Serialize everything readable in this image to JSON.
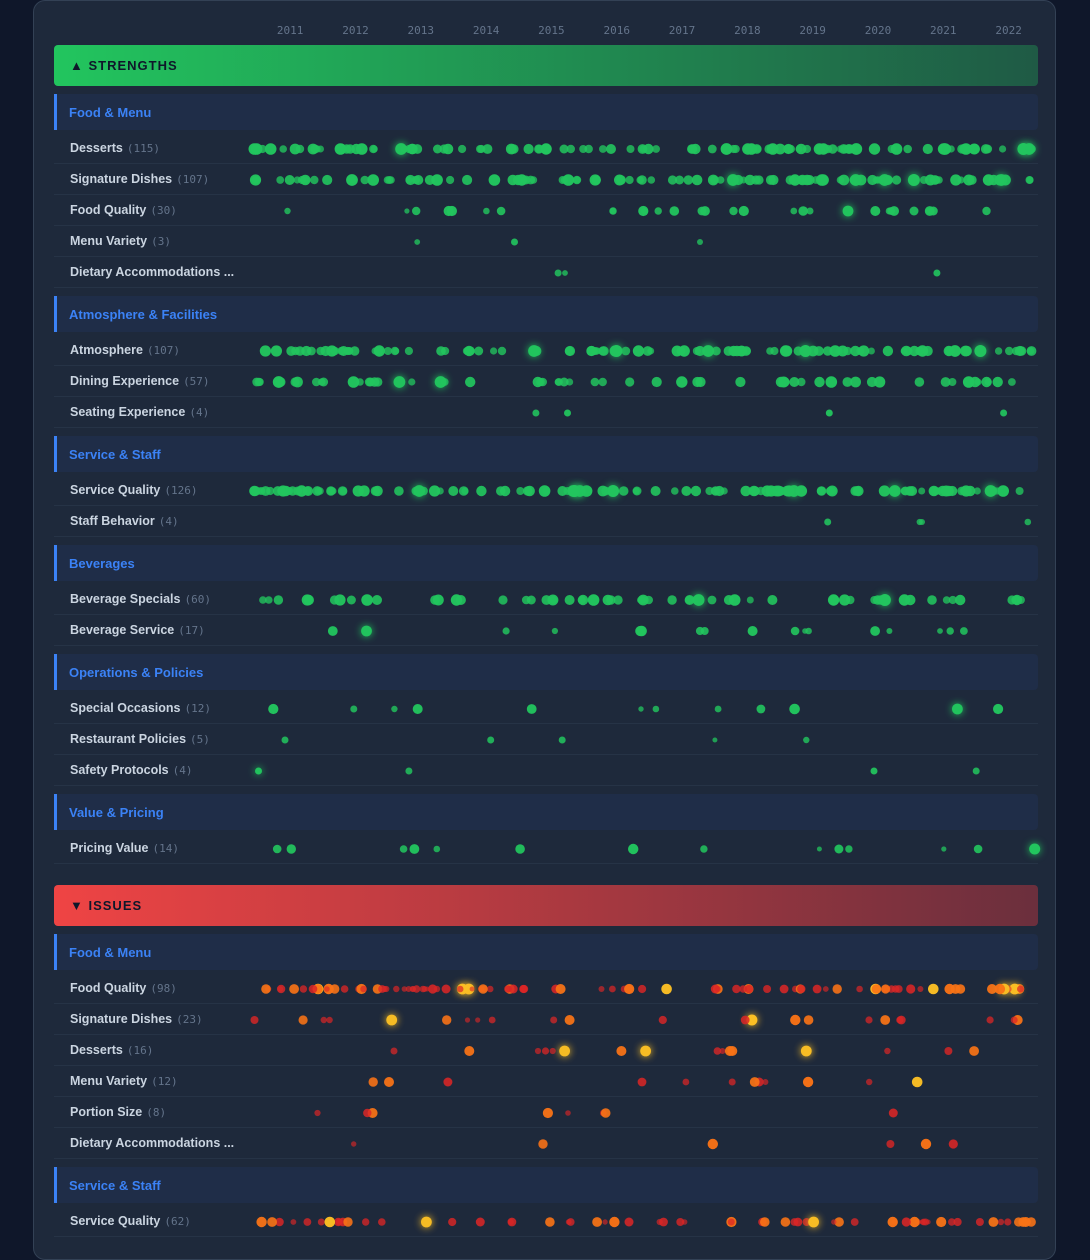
{
  "chart_data": {
    "type": "scatter",
    "years": [
      "2011",
      "2012",
      "2013",
      "2014",
      "2015",
      "2016",
      "2017",
      "2018",
      "2019",
      "2020",
      "2021",
      "2022"
    ],
    "colors": {
      "strength": "#22c55e",
      "issue_low": "#dc2626",
      "issue_mid": "#f97316",
      "issue_high": "#fbbf24",
      "category": "#3b82f6"
    },
    "sections": [
      {
        "title": "▲ STRENGTHS",
        "kind": "strength",
        "categories": [
          {
            "name": "Food & Menu",
            "rows": [
              {
                "label": "Desserts",
                "count": "(115)",
                "n": 115
              },
              {
                "label": "Signature Dishes",
                "count": "(107)",
                "n": 107
              },
              {
                "label": "Food Quality",
                "count": "(30)",
                "n": 30
              },
              {
                "label": "Menu Variety",
                "count": "(3)",
                "n": 3
              },
              {
                "label": "Dietary Accommodations ...",
                "count": "",
                "n": 3
              }
            ]
          },
          {
            "name": "Atmosphere & Facilities",
            "rows": [
              {
                "label": "Atmosphere",
                "count": "(107)",
                "n": 107
              },
              {
                "label": "Dining Experience",
                "count": "(57)",
                "n": 57
              },
              {
                "label": "Seating Experience",
                "count": "(4)",
                "n": 4
              }
            ]
          },
          {
            "name": "Service & Staff",
            "rows": [
              {
                "label": "Service Quality",
                "count": "(126)",
                "n": 126
              },
              {
                "label": "Staff Behavior",
                "count": "(4)",
                "n": 4
              }
            ]
          },
          {
            "name": "Beverages",
            "rows": [
              {
                "label": "Beverage Specials",
                "count": "(60)",
                "n": 60
              },
              {
                "label": "Beverage Service",
                "count": "(17)",
                "n": 17
              }
            ]
          },
          {
            "name": "Operations & Policies",
            "rows": [
              {
                "label": "Special Occasions",
                "count": "(12)",
                "n": 12
              },
              {
                "label": "Restaurant Policies",
                "count": "(5)",
                "n": 5
              },
              {
                "label": "Safety Protocols",
                "count": "(4)",
                "n": 4
              }
            ]
          },
          {
            "name": "Value & Pricing",
            "rows": [
              {
                "label": "Pricing Value",
                "count": "(14)",
                "n": 14
              }
            ]
          }
        ]
      },
      {
        "title": "▼ ISSUES",
        "kind": "issue",
        "categories": [
          {
            "name": "Food & Menu",
            "rows": [
              {
                "label": "Food Quality",
                "count": "(98)",
                "n": 98
              },
              {
                "label": "Signature Dishes",
                "count": "(23)",
                "n": 23
              },
              {
                "label": "Desserts",
                "count": "(16)",
                "n": 16
              },
              {
                "label": "Menu Variety",
                "count": "(12)",
                "n": 12
              },
              {
                "label": "Portion Size",
                "count": "(8)",
                "n": 8
              },
              {
                "label": "Dietary Accommodations ...",
                "count": "",
                "n": 6
              }
            ]
          },
          {
            "name": "Service & Staff",
            "rows": [
              {
                "label": "Service Quality",
                "count": "(62)",
                "n": 62
              }
            ]
          }
        ]
      }
    ]
  }
}
